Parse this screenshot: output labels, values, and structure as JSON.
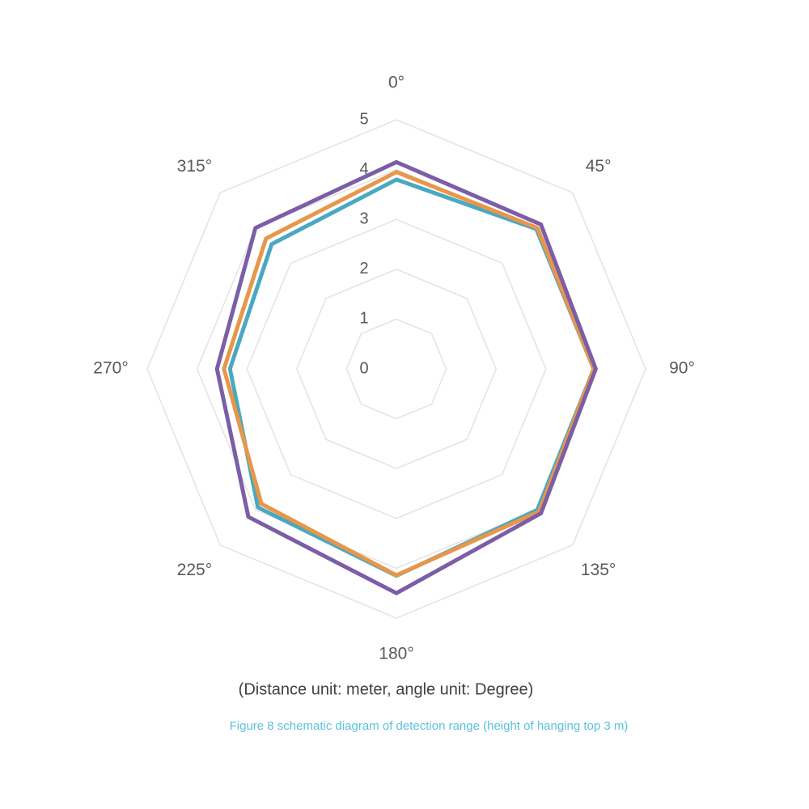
{
  "chart_data": {
    "type": "radar",
    "categories": [
      "0°",
      "45°",
      "90°",
      "135°",
      "180°",
      "225°",
      "270°",
      "315°"
    ],
    "rlim": [
      0,
      5
    ],
    "rticks": [
      0,
      1,
      2,
      3,
      4,
      5
    ],
    "grid": true,
    "series": [
      {
        "color": "#7b5ea7",
        "values": [
          4.15,
          4.1,
          4.0,
          4.1,
          4.5,
          4.2,
          3.6,
          4.0
        ]
      },
      {
        "color": "#e8964a",
        "values": [
          3.95,
          4.0,
          3.96,
          4.05,
          4.14,
          3.83,
          3.46,
          3.7
        ]
      },
      {
        "color": "#4aa8c0",
        "values": [
          3.8,
          3.97,
          3.96,
          4.0,
          4.15,
          3.93,
          3.34,
          3.54
        ]
      }
    ],
    "note": "(Distance unit: meter, angle unit: Degree)",
    "caption": "Figure 8 schematic diagram of detection range (height of hanging top 3 m)"
  }
}
